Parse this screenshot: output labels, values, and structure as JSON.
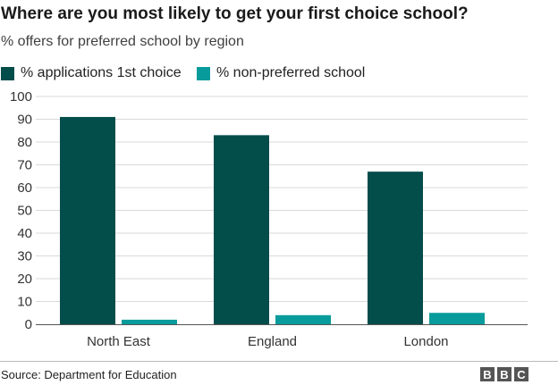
{
  "title": "Where are you most likely to get your first choice school?",
  "subtitle": "% offers for preferred school by region",
  "source": "Source: Department for Education",
  "logo": [
    "B",
    "B",
    "C"
  ],
  "colors": {
    "series1": "#034d4b",
    "series2": "#089b9b",
    "grid": "#d9d9d9",
    "axis": "#555555"
  },
  "chart_data": {
    "type": "bar",
    "categories": [
      "North East",
      "England",
      "London"
    ],
    "series": [
      {
        "name": "% applications 1st choice",
        "values": [
          91,
          83,
          67
        ]
      },
      {
        "name": "% non-preferred school",
        "values": [
          2,
          4,
          5
        ]
      }
    ],
    "ylim": [
      0,
      100
    ],
    "yticks": [
      0,
      10,
      20,
      30,
      40,
      50,
      60,
      70,
      80,
      90,
      100
    ],
    "grid": true,
    "legend": "top-left"
  }
}
